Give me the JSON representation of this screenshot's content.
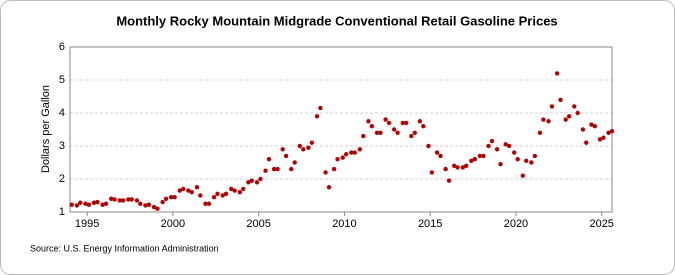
{
  "chart_data": {
    "type": "scatter",
    "title": "Monthly Rocky Mountain Midgrade Conventional Retail Gasoline Prices",
    "ylabel": "Dollars per Gallon",
    "source": "Source: U.S. Energy Information Administration",
    "xlim": [
      1994,
      2025.6
    ],
    "xticks": [
      1995,
      2000,
      2005,
      2010,
      2015,
      2020,
      2025
    ],
    "ylim": [
      1,
      6
    ],
    "yticks": [
      1,
      2,
      3,
      4,
      5,
      6
    ],
    "grid": true,
    "x": [
      1994.1,
      1994.4,
      1994.6,
      1994.9,
      1995.1,
      1995.4,
      1995.6,
      1995.9,
      1996.1,
      1996.4,
      1996.6,
      1996.9,
      1997.1,
      1997.4,
      1997.6,
      1997.9,
      1998.1,
      1998.4,
      1998.6,
      1998.9,
      1999.1,
      1999.4,
      1999.6,
      1999.9,
      2000.1,
      2000.4,
      2000.6,
      2000.9,
      2001.1,
      2001.4,
      2001.6,
      2001.9,
      2002.1,
      2002.4,
      2002.6,
      2002.9,
      2003.1,
      2003.4,
      2003.6,
      2003.9,
      2004.1,
      2004.4,
      2004.6,
      2004.9,
      2005.1,
      2005.4,
      2005.6,
      2005.9,
      2006.1,
      2006.4,
      2006.6,
      2006.9,
      2007.1,
      2007.4,
      2007.6,
      2007.9,
      2008.1,
      2008.4,
      2008.6,
      2008.9,
      2009.1,
      2009.4,
      2009.6,
      2009.9,
      2010.1,
      2010.4,
      2010.6,
      2010.9,
      2011.1,
      2011.4,
      2011.6,
      2011.9,
      2012.1,
      2012.4,
      2012.6,
      2012.9,
      2013.1,
      2013.4,
      2013.6,
      2013.9,
      2014.1,
      2014.4,
      2014.6,
      2014.9,
      2015.1,
      2015.4,
      2015.6,
      2015.9,
      2016.1,
      2016.4,
      2016.6,
      2016.9,
      2017.1,
      2017.4,
      2017.6,
      2017.9,
      2018.1,
      2018.4,
      2018.6,
      2018.9,
      2019.1,
      2019.4,
      2019.6,
      2019.9,
      2020.1,
      2020.4,
      2020.6,
      2020.9,
      2021.1,
      2021.4,
      2021.6,
      2021.9,
      2022.1,
      2022.4,
      2022.6,
      2022.9,
      2023.1,
      2023.4,
      2023.6,
      2023.9,
      2024.1,
      2024.4,
      2024.6,
      2024.9,
      2025.1,
      2025.4,
      2025.6
    ],
    "series": [
      {
        "name": "Rocky Mountain Midgrade Conventional Retail Gasoline Prices",
        "color": "#b30000",
        "values": [
          1.22,
          1.2,
          1.28,
          1.25,
          1.22,
          1.28,
          1.3,
          1.22,
          1.25,
          1.4,
          1.38,
          1.35,
          1.35,
          1.38,
          1.38,
          1.35,
          1.25,
          1.2,
          1.22,
          1.15,
          1.1,
          1.3,
          1.4,
          1.45,
          1.45,
          1.65,
          1.7,
          1.65,
          1.6,
          1.75,
          1.5,
          1.25,
          1.25,
          1.45,
          1.55,
          1.5,
          1.55,
          1.7,
          1.65,
          1.6,
          1.7,
          1.9,
          1.95,
          1.9,
          2.0,
          2.25,
          2.6,
          2.3,
          2.3,
          2.9,
          2.7,
          2.3,
          2.5,
          3.0,
          2.9,
          2.95,
          3.1,
          3.9,
          4.15,
          2.2,
          1.75,
          2.3,
          2.6,
          2.65,
          2.75,
          2.8,
          2.8,
          2.9,
          3.3,
          3.75,
          3.6,
          3.4,
          3.4,
          3.8,
          3.7,
          3.5,
          3.4,
          3.7,
          3.7,
          3.3,
          3.4,
          3.75,
          3.6,
          3.0,
          2.2,
          2.8,
          2.7,
          2.3,
          1.95,
          2.4,
          2.35,
          2.35,
          2.4,
          2.55,
          2.6,
          2.7,
          2.7,
          3.0,
          3.15,
          2.9,
          2.45,
          3.05,
          3.0,
          2.8,
          2.6,
          2.1,
          2.55,
          2.5,
          2.7,
          3.4,
          3.8,
          3.75,
          4.2,
          5.2,
          4.4,
          3.8,
          3.9,
          4.2,
          4.0,
          3.5,
          3.1,
          3.65,
          3.6,
          3.2,
          3.25,
          3.4,
          3.45
        ]
      }
    ]
  }
}
